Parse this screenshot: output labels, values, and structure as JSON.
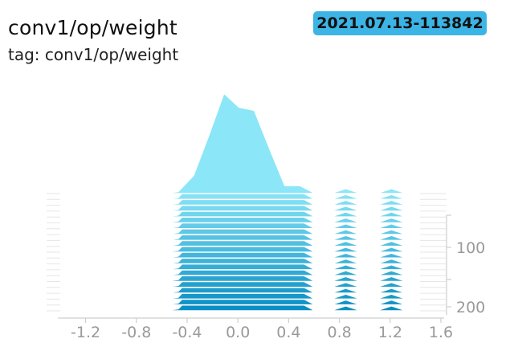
{
  "header": {
    "title": "conv1/op/weight",
    "tag_line": "tag: conv1/op/weight",
    "run_label": "2021.07.13-113842"
  },
  "colors": {
    "badge": "#3cb4e6",
    "front_fill": "#0a8fc4",
    "back_fill": "#8be6f8",
    "stroke": "#ffffff",
    "axis": "#cfcfcf",
    "tick_text": "#9a9a9a"
  },
  "chart_data": {
    "type": "histogram-offset",
    "title": "conv1/op/weight",
    "x_ticks": [
      "-1.2",
      "-0.8",
      "-0.4",
      "0.0",
      "0.4",
      "0.8",
      "1.2",
      "1.6"
    ],
    "x_tick_values": [
      -1.2,
      -0.8,
      -0.4,
      0.0,
      0.4,
      0.8,
      1.2,
      1.6
    ],
    "xlim": [
      -1.4,
      1.6
    ],
    "x": [
      -1.31,
      -1.19,
      -1.07,
      -0.95,
      -0.83,
      -0.71,
      -0.59,
      -0.47,
      -0.35,
      -0.23,
      -0.11,
      0.01,
      0.13,
      0.25,
      0.37,
      0.49,
      0.61,
      0.73,
      0.85,
      0.97,
      1.09,
      1.21,
      1.33,
      1.45
    ],
    "step_ticks": [
      "100",
      "200"
    ],
    "step_tick_values": [
      100,
      200
    ],
    "step_range": [
      0,
      200
    ],
    "series": [
      {
        "step": 0,
        "values": [
          0.0,
          0.0,
          0.0,
          0.0,
          0.0,
          0.0,
          0.0,
          0.02,
          0.18,
          0.58,
          1.0,
          0.86,
          0.83,
          0.45,
          0.08,
          0.08,
          0.0,
          0.0,
          0.05,
          0.0,
          0.0,
          0.05,
          0.0,
          0.0
        ]
      },
      {
        "step": 10,
        "values": [
          0.0,
          0.0,
          0.0,
          0.0,
          0.0,
          0.0,
          0.0,
          0.02,
          0.18,
          0.58,
          1.0,
          0.86,
          0.83,
          0.45,
          0.08,
          0.08,
          0.0,
          0.0,
          0.05,
          0.0,
          0.0,
          0.05,
          0.0,
          0.0
        ]
      },
      {
        "step": 20,
        "values": [
          0.0,
          0.0,
          0.0,
          0.0,
          0.0,
          0.0,
          0.0,
          0.02,
          0.18,
          0.58,
          1.0,
          0.86,
          0.83,
          0.45,
          0.08,
          0.08,
          0.0,
          0.0,
          0.05,
          0.0,
          0.0,
          0.05,
          0.0,
          0.0
        ]
      },
      {
        "step": 30,
        "values": [
          0.0,
          0.0,
          0.0,
          0.0,
          0.0,
          0.0,
          0.0,
          0.02,
          0.18,
          0.58,
          1.0,
          0.86,
          0.83,
          0.45,
          0.08,
          0.08,
          0.0,
          0.0,
          0.05,
          0.0,
          0.0,
          0.05,
          0.0,
          0.0
        ]
      },
      {
        "step": 40,
        "values": [
          0.0,
          0.0,
          0.0,
          0.0,
          0.0,
          0.0,
          0.0,
          0.02,
          0.18,
          0.58,
          1.0,
          0.86,
          0.83,
          0.45,
          0.08,
          0.08,
          0.0,
          0.0,
          0.05,
          0.0,
          0.0,
          0.05,
          0.0,
          0.0
        ]
      },
      {
        "step": 50,
        "values": [
          0.0,
          0.0,
          0.0,
          0.0,
          0.0,
          0.0,
          0.0,
          0.02,
          0.18,
          0.58,
          1.0,
          0.86,
          0.83,
          0.45,
          0.08,
          0.08,
          0.0,
          0.0,
          0.05,
          0.0,
          0.0,
          0.05,
          0.0,
          0.0
        ]
      },
      {
        "step": 60,
        "values": [
          0.0,
          0.0,
          0.0,
          0.0,
          0.0,
          0.0,
          0.0,
          0.02,
          0.18,
          0.58,
          1.0,
          0.86,
          0.83,
          0.45,
          0.08,
          0.08,
          0.0,
          0.0,
          0.05,
          0.0,
          0.0,
          0.05,
          0.0,
          0.0
        ]
      },
      {
        "step": 70,
        "values": [
          0.0,
          0.0,
          0.0,
          0.0,
          0.0,
          0.0,
          0.0,
          0.02,
          0.18,
          0.58,
          1.0,
          0.86,
          0.83,
          0.45,
          0.08,
          0.08,
          0.0,
          0.0,
          0.05,
          0.0,
          0.0,
          0.05,
          0.0,
          0.0
        ]
      },
      {
        "step": 80,
        "values": [
          0.0,
          0.0,
          0.0,
          0.0,
          0.0,
          0.0,
          0.0,
          0.02,
          0.18,
          0.58,
          1.0,
          0.86,
          0.83,
          0.45,
          0.08,
          0.08,
          0.0,
          0.0,
          0.05,
          0.0,
          0.0,
          0.05,
          0.0,
          0.0
        ]
      },
      {
        "step": 90,
        "values": [
          0.0,
          0.0,
          0.0,
          0.0,
          0.0,
          0.0,
          0.0,
          0.02,
          0.18,
          0.58,
          1.0,
          0.86,
          0.83,
          0.45,
          0.08,
          0.08,
          0.0,
          0.0,
          0.05,
          0.0,
          0.0,
          0.05,
          0.0,
          0.0
        ]
      },
      {
        "step": 100,
        "values": [
          0.0,
          0.0,
          0.0,
          0.0,
          0.0,
          0.0,
          0.0,
          0.02,
          0.18,
          0.58,
          1.0,
          0.86,
          0.83,
          0.45,
          0.08,
          0.08,
          0.0,
          0.0,
          0.05,
          0.0,
          0.0,
          0.05,
          0.0,
          0.0
        ]
      },
      {
        "step": 110,
        "values": [
          0.0,
          0.0,
          0.0,
          0.0,
          0.0,
          0.0,
          0.0,
          0.02,
          0.18,
          0.58,
          1.0,
          0.86,
          0.83,
          0.45,
          0.08,
          0.08,
          0.0,
          0.0,
          0.05,
          0.0,
          0.0,
          0.05,
          0.0,
          0.0
        ]
      },
      {
        "step": 120,
        "values": [
          0.0,
          0.0,
          0.0,
          0.0,
          0.0,
          0.0,
          0.0,
          0.02,
          0.18,
          0.58,
          1.0,
          0.86,
          0.83,
          0.45,
          0.08,
          0.08,
          0.0,
          0.0,
          0.05,
          0.0,
          0.0,
          0.05,
          0.0,
          0.0
        ]
      },
      {
        "step": 130,
        "values": [
          0.0,
          0.0,
          0.0,
          0.0,
          0.0,
          0.0,
          0.0,
          0.02,
          0.18,
          0.58,
          1.0,
          0.86,
          0.83,
          0.45,
          0.08,
          0.08,
          0.0,
          0.0,
          0.05,
          0.0,
          0.0,
          0.05,
          0.0,
          0.0
        ]
      },
      {
        "step": 140,
        "values": [
          0.0,
          0.0,
          0.0,
          0.0,
          0.0,
          0.0,
          0.0,
          0.02,
          0.18,
          0.58,
          1.0,
          0.86,
          0.83,
          0.45,
          0.08,
          0.08,
          0.0,
          0.0,
          0.05,
          0.0,
          0.0,
          0.05,
          0.0,
          0.0
        ]
      },
      {
        "step": 150,
        "values": [
          0.0,
          0.0,
          0.0,
          0.0,
          0.0,
          0.0,
          0.0,
          0.02,
          0.18,
          0.58,
          1.0,
          0.86,
          0.83,
          0.45,
          0.08,
          0.08,
          0.0,
          0.0,
          0.05,
          0.0,
          0.0,
          0.05,
          0.0,
          0.0
        ]
      },
      {
        "step": 160,
        "values": [
          0.0,
          0.0,
          0.0,
          0.0,
          0.0,
          0.0,
          0.0,
          0.02,
          0.18,
          0.58,
          1.0,
          0.86,
          0.83,
          0.45,
          0.08,
          0.08,
          0.0,
          0.0,
          0.05,
          0.0,
          0.0,
          0.05,
          0.0,
          0.0
        ]
      },
      {
        "step": 170,
        "values": [
          0.0,
          0.0,
          0.0,
          0.0,
          0.0,
          0.0,
          0.0,
          0.02,
          0.18,
          0.58,
          1.0,
          0.86,
          0.83,
          0.45,
          0.08,
          0.08,
          0.0,
          0.0,
          0.05,
          0.0,
          0.0,
          0.05,
          0.0,
          0.0
        ]
      },
      {
        "step": 180,
        "values": [
          0.0,
          0.0,
          0.0,
          0.0,
          0.0,
          0.0,
          0.0,
          0.02,
          0.18,
          0.58,
          1.0,
          0.86,
          0.83,
          0.45,
          0.08,
          0.08,
          0.0,
          0.0,
          0.05,
          0.0,
          0.0,
          0.05,
          0.0,
          0.0
        ]
      },
      {
        "step": 190,
        "values": [
          0.0,
          0.0,
          0.0,
          0.0,
          0.0,
          0.0,
          0.0,
          0.02,
          0.18,
          0.58,
          1.0,
          0.86,
          0.83,
          0.45,
          0.08,
          0.08,
          0.0,
          0.0,
          0.05,
          0.0,
          0.0,
          0.05,
          0.0,
          0.0
        ]
      },
      {
        "step": 200,
        "values": [
          0.0,
          0.0,
          0.0,
          0.0,
          0.0,
          0.0,
          0.0,
          0.02,
          0.18,
          0.58,
          1.0,
          0.86,
          0.83,
          0.45,
          0.08,
          0.08,
          0.0,
          0.0,
          0.05,
          0.0,
          0.0,
          0.05,
          0.0,
          0.0
        ]
      }
    ]
  }
}
